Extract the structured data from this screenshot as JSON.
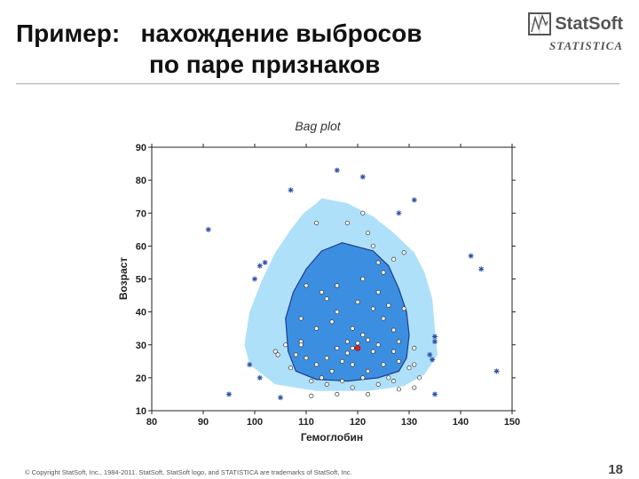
{
  "slide": {
    "title_line1": "Пример:   нахождение выбросов",
    "title_line2": "по паре признаков",
    "logo_name": "StatSoft",
    "logo_sub": "STATISTICA",
    "footer": "© Copyright StatSoft, Inc., 1984-2011. StatSoft, StatSoft logo, and STATISTICA are trademarks of StatSoft, Inc.",
    "page_number": "18"
  },
  "chart_data": {
    "type": "scatter",
    "title": "Bag plot",
    "xlabel": "Гемоглобин",
    "ylabel": "Возраст",
    "xlim": [
      80,
      150
    ],
    "ylim": [
      10,
      90
    ],
    "xticks": [
      80,
      90,
      100,
      110,
      120,
      130,
      140,
      150
    ],
    "yticks": [
      10,
      20,
      30,
      40,
      50,
      60,
      70,
      80,
      90
    ],
    "xtick_labels": [
      "80",
      "90",
      "100",
      "110",
      "120",
      "130",
      "140",
      "150"
    ],
    "ytick_labels": [
      "10",
      "20",
      "30",
      "40",
      "50",
      "60",
      "70",
      "80",
      "90"
    ],
    "colors": {
      "fence": "#aee0fa",
      "bag": "#3c8fe0",
      "bag_stroke": "#1e3c8c",
      "outlier": "#2c4fa8",
      "median": "#e02020",
      "point": "#ffffff"
    },
    "fence_polygon": [
      [
        113,
        74.5
      ],
      [
        118,
        73
      ],
      [
        123,
        69
      ],
      [
        127,
        64
      ],
      [
        131,
        58
      ],
      [
        133,
        52
      ],
      [
        134.5,
        44
      ],
      [
        135,
        35
      ],
      [
        135.5,
        27
      ],
      [
        133,
        21
      ],
      [
        129,
        17.5
      ],
      [
        122,
        16
      ],
      [
        112,
        16
      ],
      [
        104,
        18
      ],
      [
        99,
        24
      ],
      [
        98,
        30
      ],
      [
        99,
        40
      ],
      [
        101.5,
        50
      ],
      [
        104,
        58
      ],
      [
        107,
        65
      ],
      [
        109.5,
        70
      ],
      [
        112,
        73
      ]
    ],
    "bag_polygon": [
      [
        117,
        61
      ],
      [
        123,
        58.5
      ],
      [
        126,
        54
      ],
      [
        128,
        47
      ],
      [
        129.5,
        40
      ],
      [
        130,
        33
      ],
      [
        129.5,
        26
      ],
      [
        128,
        22
      ],
      [
        124,
        20
      ],
      [
        118,
        19
      ],
      [
        112,
        19.5
      ],
      [
        108,
        22
      ],
      [
        106.5,
        28
      ],
      [
        106,
        38
      ],
      [
        107.5,
        46
      ],
      [
        110,
        53
      ],
      [
        113,
        58.5
      ]
    ],
    "median": [
      120,
      29
    ],
    "outliers": [
      [
        116,
        83
      ],
      [
        121,
        81
      ],
      [
        107,
        77
      ],
      [
        131,
        74
      ],
      [
        128,
        70
      ],
      [
        91,
        65
      ],
      [
        102,
        55
      ],
      [
        101,
        54
      ],
      [
        100,
        50
      ],
      [
        142,
        57
      ],
      [
        144,
        53
      ],
      [
        135,
        31
      ],
      [
        135,
        32.5
      ],
      [
        134,
        27
      ],
      [
        134.5,
        25.5
      ],
      [
        147,
        22
      ],
      [
        99,
        24
      ],
      [
        101,
        20
      ],
      [
        95,
        15
      ],
      [
        105,
        14
      ],
      [
        135,
        15
      ]
    ],
    "points": [
      [
        121,
        70
      ],
      [
        118,
        67
      ],
      [
        122,
        64
      ],
      [
        112,
        67
      ],
      [
        123,
        60
      ],
      [
        124,
        55
      ],
      [
        127,
        56
      ],
      [
        129,
        58
      ],
      [
        125,
        52
      ],
      [
        121,
        50
      ],
      [
        116,
        48
      ],
      [
        114,
        44
      ],
      [
        113,
        46
      ],
      [
        116,
        40
      ],
      [
        120,
        43
      ],
      [
        123,
        41
      ],
      [
        126,
        42
      ],
      [
        129,
        41
      ],
      [
        125,
        38
      ],
      [
        119,
        35
      ],
      [
        121,
        33
      ],
      [
        124,
        30
      ],
      [
        123,
        28
      ],
      [
        118,
        31
      ],
      [
        116,
        29
      ],
      [
        114,
        26
      ],
      [
        112,
        24
      ],
      [
        115,
        22
      ],
      [
        119,
        24
      ],
      [
        122,
        22
      ],
      [
        125,
        24
      ],
      [
        128,
        25
      ],
      [
        130,
        23
      ],
      [
        126,
        20
      ],
      [
        121,
        20
      ],
      [
        117,
        19
      ],
      [
        113,
        20
      ],
      [
        109,
        31
      ],
      [
        108,
        27
      ],
      [
        110,
        26
      ],
      [
        106,
        30
      ],
      [
        104,
        28
      ],
      [
        104.5,
        27
      ],
      [
        107,
        23
      ],
      [
        111,
        19
      ],
      [
        114,
        18
      ],
      [
        119,
        17
      ],
      [
        124,
        18
      ],
      [
        127,
        19
      ],
      [
        132,
        20
      ],
      [
        131,
        17
      ],
      [
        128,
        16.5
      ],
      [
        122,
        15
      ],
      [
        116,
        15
      ],
      [
        111,
        14.5
      ],
      [
        109,
        30
      ],
      [
        131,
        24
      ],
      [
        119,
        29
      ],
      [
        120,
        30.5
      ],
      [
        122,
        31.5
      ],
      [
        118,
        27.5
      ],
      [
        117,
        25
      ],
      [
        127,
        34.5
      ],
      [
        112,
        35
      ],
      [
        115,
        37
      ],
      [
        128,
        31
      ],
      [
        131,
        29
      ],
      [
        109,
        38
      ],
      [
        110,
        48
      ],
      [
        127,
        28
      ],
      [
        124,
        46
      ]
    ]
  }
}
